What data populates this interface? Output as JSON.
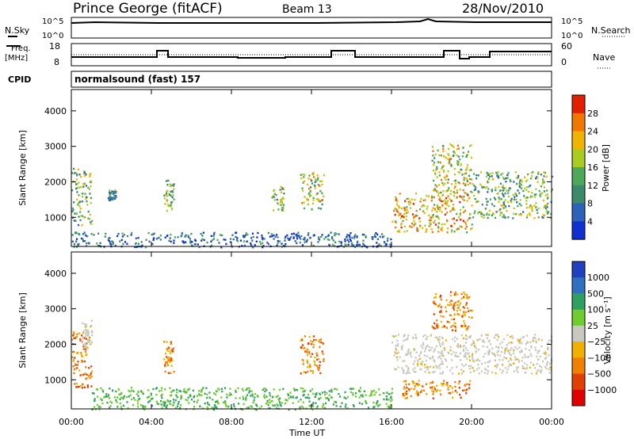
{
  "header": {
    "station": "Prince George (fitACF)",
    "beam": "Beam 13",
    "date": "28/Nov/2010"
  },
  "top_panels": {
    "nsky_label": "N.Sky",
    "nsky_ticks": [
      "10^5",
      "10^0"
    ],
    "nsearch_label": "N.Search",
    "nsearch_ticks": [
      "10^5",
      "10^0"
    ],
    "freq_label": "Freq.",
    "freq_unit": "[MHz]",
    "freq_ticks": [
      "18",
      "8"
    ],
    "nave_label": "Nave",
    "nave_ticks": [
      "60",
      "0"
    ],
    "cpid_label": "CPID",
    "cpid_text": "normalsound (fast) 157"
  },
  "colors": {
    "power_scale": [
      "#1030d0",
      "#2c62b8",
      "#3c8a6a",
      "#4ea85a",
      "#aacc22",
      "#f0b400",
      "#f07800",
      "#e02000"
    ],
    "velocity_scale": [
      "#2040c0",
      "#3070c0",
      "#30a060",
      "#70cc30",
      "#c8c8c0",
      "#f0b000",
      "#f08000",
      "#e04000",
      "#e00000"
    ]
  },
  "chart_data": [
    {
      "type": "heatmap",
      "name": "power",
      "ylabel": "Slant Range [km]",
      "yticks": [
        "1000",
        "2000",
        "3000",
        "4000"
      ],
      "ylim": [
        180,
        4600
      ],
      "colorbar_label": "Power [dB]",
      "colorbar_ticks": [
        "4",
        "8",
        "12",
        "16",
        "20",
        "24",
        "28"
      ],
      "clim": [
        0,
        30
      ],
      "echo_regions": [
        {
          "t_start": 0.0,
          "t_end": 1.0,
          "r_min": 800,
          "r_max": 2400,
          "level": 12
        },
        {
          "t_start": 0.0,
          "t_end": 16.0,
          "r_min": 180,
          "r_max": 600,
          "level": 6
        },
        {
          "t_start": 1.8,
          "t_end": 2.2,
          "r_min": 1500,
          "r_max": 1800,
          "level": 8
        },
        {
          "t_start": 4.6,
          "t_end": 5.1,
          "r_min": 1200,
          "r_max": 2100,
          "level": 14
        },
        {
          "t_start": 10.0,
          "t_end": 10.6,
          "r_min": 1200,
          "r_max": 1900,
          "level": 12
        },
        {
          "t_start": 11.4,
          "t_end": 12.6,
          "r_min": 1200,
          "r_max": 2300,
          "level": 16
        },
        {
          "t_start": 16.0,
          "t_end": 20.0,
          "r_min": 600,
          "r_max": 1700,
          "level": 20
        },
        {
          "t_start": 18.0,
          "t_end": 20.0,
          "r_min": 1700,
          "r_max": 3100,
          "level": 16
        },
        {
          "t_start": 20.0,
          "t_end": 24.0,
          "r_min": 1000,
          "r_max": 2300,
          "level": 12
        }
      ]
    },
    {
      "type": "heatmap",
      "name": "velocity",
      "ylabel": "Slant Range [km]",
      "yticks": [
        "1000",
        "2000",
        "3000",
        "4000"
      ],
      "ylim": [
        180,
        4600
      ],
      "colorbar_label": "Velocity [m s⁻¹]",
      "colorbar_ticks": [
        "1000",
        "500",
        "100",
        "25",
        "−25",
        "−100",
        "−500",
        "−1000"
      ],
      "echo_regions": [
        {
          "t_start": 0.0,
          "t_end": 1.0,
          "r_min": 800,
          "r_max": 2400,
          "velocity": -100
        },
        {
          "t_start": 0.5,
          "t_end": 1.0,
          "r_min": 1900,
          "r_max": 2700,
          "velocity": 0
        },
        {
          "t_start": 1.0,
          "t_end": 16.0,
          "r_min": 180,
          "r_max": 800,
          "velocity": 100
        },
        {
          "t_start": 4.6,
          "t_end": 5.1,
          "r_min": 1200,
          "r_max": 2100,
          "velocity": -100
        },
        {
          "t_start": 11.4,
          "t_end": 12.6,
          "r_min": 1200,
          "r_max": 2300,
          "velocity": -100
        },
        {
          "t_start": 16.0,
          "t_end": 24.0,
          "r_min": 1200,
          "r_max": 2300,
          "velocity": 0
        },
        {
          "t_start": 18.0,
          "t_end": 20.0,
          "r_min": 2400,
          "r_max": 3500,
          "velocity": -100
        },
        {
          "t_start": 16.5,
          "t_end": 20.0,
          "r_min": 500,
          "r_max": 1000,
          "velocity": -100
        }
      ]
    }
  ],
  "xaxis": {
    "label": "Time UT",
    "ticks": [
      "00:00",
      "04:00",
      "08:00",
      "12:00",
      "16:00",
      "20:00",
      "00:00"
    ],
    "range_hours": [
      0,
      24
    ]
  }
}
